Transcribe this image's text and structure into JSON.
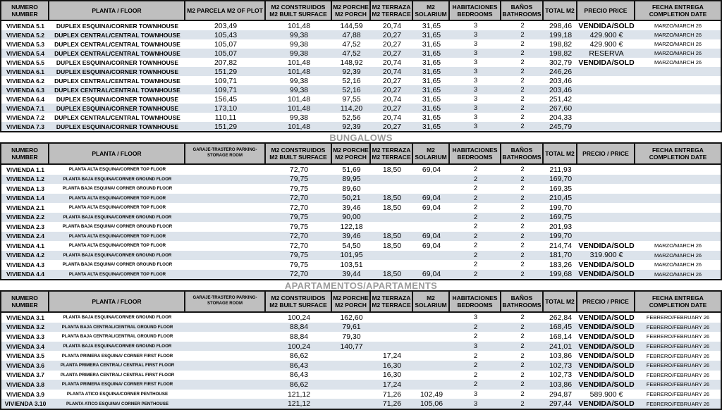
{
  "colors": {
    "header_bg": "#bfbfbf",
    "stripe": "#dce3eb",
    "border": "#141414",
    "section_title": "#9b9b9b"
  },
  "sections": [
    {
      "name": "townhouses",
      "title": "",
      "headers": [
        {
          "key": "numero",
          "lines": [
            "NUMERO",
            "NUMBER"
          ]
        },
        {
          "key": "planta",
          "lines": [
            "PLANTA  /  FLOOR"
          ]
        },
        {
          "key": "plot",
          "lines": [
            "M2 PARCELA M2 OF PLOT"
          ]
        },
        {
          "key": "built",
          "lines": [
            "M2 CONSTRUIDOS",
            "M2 BUILT SURFACE"
          ]
        },
        {
          "key": "porch",
          "lines": [
            "M2 PORCHE",
            "M2 PORCH"
          ]
        },
        {
          "key": "terrace",
          "lines": [
            "M2 TERRAZA",
            "M2 TERRACE"
          ]
        },
        {
          "key": "solarium",
          "lines": [
            "M2",
            "SOLARIUM"
          ]
        },
        {
          "key": "bedrooms",
          "lines": [
            "HABITACIONES",
            "BEDROOMS"
          ]
        },
        {
          "key": "bathrooms",
          "lines": [
            "BAÑOS",
            "BATHROOMS"
          ]
        },
        {
          "key": "total",
          "lines": [
            "TOTAL M2"
          ]
        },
        {
          "key": "price",
          "lines": [
            "PRECIO  PRICE"
          ]
        },
        {
          "key": "date",
          "lines": [
            "FECHA ENTREGA",
            "COMPLETION DATE"
          ]
        }
      ],
      "rows": [
        [
          "VIVIENDA 5.1",
          "DUPLEX ESQUINA/CORNER TOWNHOUSE",
          "203,49",
          "101,48",
          "144,59",
          "20,74",
          "31,65",
          "3",
          "2",
          "298,46",
          "VENDIDA/SOLD",
          "MARZO/MARCH 26"
        ],
        [
          "VIVIENDA 5.2",
          "DUPLEX CENTRAL/CENTRAL TOWNHOUSE",
          "105,43",
          "99,38",
          "47,88",
          "20,27",
          "31,65",
          "3",
          "2",
          "199,18",
          "429.900 €",
          "MARZO/MARCH 26"
        ],
        [
          "VIVIENDA 5.3",
          "DUPLEX CENTRAL/CENTRAL TOWNHOUSE",
          "105,07",
          "99,38",
          "47,52",
          "20,27",
          "31,65",
          "3",
          "2",
          "198,82",
          "429.900 €",
          "MARZO/MARCH 26"
        ],
        [
          "VIVIENDA 5.4",
          "DUPLEX CENTRAL/CENTRAL TOWNHOUSE",
          "105,07",
          "99,38",
          "47,52",
          "20,27",
          "31,65",
          "3",
          "2",
          "198,82",
          "RESERVA",
          "MARZO/MARCH 26"
        ],
        [
          "VIVIENDA 5.5",
          "DUPLEX ESQUINA/CORNER TOWNHOUSE",
          "207,82",
          "101,48",
          "148,92",
          "20,74",
          "31,65",
          "3",
          "2",
          "302,79",
          "VENDIDA/SOLD",
          "MARZO/MARCH 26"
        ],
        [
          "VIVIENDA 6.1",
          "DUPLEX ESQUINA/CORNER TOWNHOUSE",
          "151,29",
          "101,48",
          "92,39",
          "20,74",
          "31,65",
          "3",
          "2",
          "246,26",
          "",
          ""
        ],
        [
          "VIVIENDA 6.2",
          "DUPLEX CENTRAL/CENTRAL TOWNHOUSE",
          "109,71",
          "99,38",
          "52,16",
          "20,27",
          "31,65",
          "3",
          "2",
          "203,46",
          "",
          ""
        ],
        [
          "VIVIENDA 6.3",
          "DUPLEX CENTRAL/CENTRAL TOWNHOUSE",
          "109,71",
          "99,38",
          "52,16",
          "20,27",
          "31,65",
          "3",
          "2",
          "203,46",
          "",
          ""
        ],
        [
          "VIVIENDA 6.4",
          "DUPLEX ESQUINA/CORNER TOWNHOUSE",
          "156,45",
          "101,48",
          "97,55",
          "20,74",
          "31,65",
          "3",
          "2",
          "251,42",
          "",
          ""
        ],
        [
          "VIVIENDA 7.1",
          "DUPLEX ESQUINA/CORNER TOWNHOUSE",
          "173,10",
          "101,48",
          "114,20",
          "20,27",
          "31,65",
          "3",
          "2",
          "267,60",
          "",
          ""
        ],
        [
          "VIVIENDA 7.2",
          "DUPLEX CENTRAL/CENTRAL TOWNHOUSE",
          "110,11",
          "99,38",
          "52,56",
          "20,74",
          "31,65",
          "3",
          "2",
          "204,33",
          "",
          ""
        ],
        [
          "VIVIENDA 7.3",
          "DUPLEX ESQUINA/CORNER TOWNHOUSE",
          "151,29",
          "101,48",
          "92,39",
          "20,27",
          "31,65",
          "3",
          "2",
          "245,79",
          "",
          ""
        ]
      ]
    },
    {
      "name": "bungalows",
      "title": "BUNGALOWS",
      "headers": [
        {
          "key": "numero",
          "lines": [
            "NUMERO",
            "NUMBER"
          ]
        },
        {
          "key": "planta",
          "lines": [
            "PLANTA  /  FLOOR"
          ]
        },
        {
          "key": "garage",
          "lines": [
            "GARAJE-TRASTERO PARKING-",
            "STORAGE ROOM"
          ],
          "small": true
        },
        {
          "key": "built",
          "lines": [
            "M2 CONSTRUIDOS",
            "M2 BUILT SURFACE"
          ]
        },
        {
          "key": "porch",
          "lines": [
            "M2 PORCHE",
            "M2 PORCH"
          ]
        },
        {
          "key": "terrace",
          "lines": [
            "M2 TERRAZA",
            "M2 TERRACE"
          ]
        },
        {
          "key": "solarium",
          "lines": [
            "M2",
            "SOLARIUM"
          ]
        },
        {
          "key": "bedrooms",
          "lines": [
            "HABITACIONES",
            "BEDROOMS"
          ]
        },
        {
          "key": "bathrooms",
          "lines": [
            "BAÑOS",
            "BATHROOMS"
          ]
        },
        {
          "key": "total",
          "lines": [
            "TOTAL M2"
          ]
        },
        {
          "key": "price",
          "lines": [
            "PRECIO / PRICE"
          ]
        },
        {
          "key": "date",
          "lines": [
            "FECHA ENTREGA",
            "COMPLETION DATE"
          ]
        }
      ],
      "rows": [
        [
          "VIVIENDA 1.1",
          "PLANTA ALTA ESQUINA/CORNER TOP FLOOR",
          "",
          "72,70",
          "51,69",
          "18,50",
          "69,04",
          "2",
          "2",
          "211,93",
          "",
          ""
        ],
        [
          "VIVIENDA 1.2",
          "PLANTA BAJA ESQUINA/CORNER GROUND FLOOR",
          "",
          "79,75",
          "89,95",
          "",
          "",
          "2",
          "2",
          "169,70",
          "",
          ""
        ],
        [
          "VIVIENDA 1.3",
          "PLANTA BAJA ESQUINA/ CORNER GROUND FLOOR",
          "",
          "79,75",
          "89,60",
          "",
          "",
          "2",
          "2",
          "169,35",
          "",
          ""
        ],
        [
          "VIVIENDA 1.4",
          "PLANTA ALTA ESQUINA/CORNER TOP FLOOR",
          "",
          "72,70",
          "50,21",
          "18,50",
          "69,04",
          "2",
          "2",
          "210,45",
          "",
          ""
        ],
        [
          "VIVIENDA 2.1",
          "PLANTA ALTA ESQUINA/CORNER TOP FLOOR",
          "",
          "72,70",
          "39,46",
          "18,50",
          "69,04",
          "2",
          "2",
          "199,70",
          "",
          ""
        ],
        [
          "VIVIENDA 2.2",
          "PLANTA BAJA ESQUINA/CORNER GROUND FLOOR",
          "",
          "79,75",
          "90,00",
          "",
          "",
          "2",
          "2",
          "169,75",
          "",
          ""
        ],
        [
          "VIVIENDA 2.3",
          "PLANTA BAJA ESQUINA/ CORNER GROUND FLOOR",
          "",
          "79,75",
          "122,18",
          "",
          "",
          "2",
          "2",
          "201,93",
          "",
          ""
        ],
        [
          "VIVIENDA 2.4",
          "PLANTA ALTA ESQUINA/CORNER TOP FLOOR",
          "",
          "72,70",
          "39,46",
          "18,50",
          "69,04",
          "2",
          "2",
          "199,70",
          "",
          ""
        ],
        [
          "VIVIENDA 4.1",
          "PLANTA ALTA ESQUINA/CORNER TOP FLOOR",
          "",
          "72,70",
          "54,50",
          "18,50",
          "69,04",
          "2",
          "2",
          "214,74",
          "VENDIDA/SOLD",
          "MARZO/MARCH 26"
        ],
        [
          "VIVIENDA 4.2",
          "PLANTA BAJA ESQUINA/CORNER GROUND FLOOR",
          "",
          "79,75",
          "101,95",
          "",
          "",
          "2",
          "2",
          "181,70",
          "319.900 €",
          "MARZO/MARCH 26"
        ],
        [
          "VIVIENDA 4.3",
          "PLANTA BAJA ESQUINA/ CORNER GROUND FLOOR",
          "",
          "79,75",
          "103,51",
          "",
          "",
          "2",
          "2",
          "183,26",
          "VENDIDA/SOLD",
          "MARZO/MARCH 26"
        ],
        [
          "VIVIENDA 4.4",
          "PLANTA ALTA ESQUINA/CORNER TOP FLOOR",
          "",
          "72,70",
          "39,44",
          "18,50",
          "69,04",
          "2",
          "2",
          "199,68",
          "VENDIDA/SOLD",
          "MARZO/MARCH 26"
        ]
      ]
    },
    {
      "name": "apartments",
      "title": "APARTAMENTOS/APARTAMENTS",
      "headers": [
        {
          "key": "numero",
          "lines": [
            "NUMERO",
            "NUMBER"
          ]
        },
        {
          "key": "planta",
          "lines": [
            "PLANTA  /  FLOOR"
          ]
        },
        {
          "key": "garage",
          "lines": [
            "GARAJE-TRASTERO PARKING-",
            "STORAGE ROOM"
          ],
          "small": true
        },
        {
          "key": "built",
          "lines": [
            "M2 CONSTRUIDOS",
            "M2 BUILT SURFACE"
          ]
        },
        {
          "key": "porch",
          "lines": [
            "M2 PORCHE",
            "M2 PORCH"
          ]
        },
        {
          "key": "terrace",
          "lines": [
            "M2 TERRAZA",
            "M2 TERRACE"
          ]
        },
        {
          "key": "solarium",
          "lines": [
            "M2",
            "SOLARIUM"
          ]
        },
        {
          "key": "bedrooms",
          "lines": [
            "HABITACIONES",
            "BEDROOMS"
          ]
        },
        {
          "key": "bathrooms",
          "lines": [
            "BAÑOS",
            "BATHROOMS"
          ]
        },
        {
          "key": "total",
          "lines": [
            "TOTAL M2"
          ]
        },
        {
          "key": "price",
          "lines": [
            "PRECIO / PRICE"
          ]
        },
        {
          "key": "date",
          "lines": [
            "FECHA ENTREGA",
            "COMPLETION DATE"
          ]
        }
      ],
      "rows": [
        [
          "VIVIENDA 3.1",
          "PLANTA BAJA ESQUINA/CORNER GROUND FLOOR",
          "",
          "100,24",
          "162,60",
          "",
          "",
          "3",
          "2",
          "262,84",
          "VENDIDA/SOLD",
          "FEBRERO/FEBRUARY 26"
        ],
        [
          "VIVIENDA 3.2",
          "PLANTA BAJA CENTRAL/CENTRAL GROUND FLOOR",
          "",
          "88,84",
          "79,61",
          "",
          "",
          "2",
          "2",
          "168,45",
          "VENDIDA/SOLD",
          "FEBRERO/FEBRUARY 26"
        ],
        [
          "VIVIENDA 3.3",
          "PLANTA BAJA CENTRAL/CENTRAL GROUND FLOOR",
          "",
          "88,84",
          "79,30",
          "",
          "",
          "2",
          "2",
          "168,14",
          "VENDIDA/SOLD",
          "FEBRERO/FEBRUARY 26"
        ],
        [
          "VIVIENDA 3.4",
          "PLANTA BAJA ESQUINA/CORNER GROUND FLOOR",
          "",
          "100,24",
          "140,77",
          "",
          "",
          "3",
          "2",
          "241,01",
          "VENDIDA/SOLD",
          "FEBRERO/FEBRUARY 26"
        ],
        [
          "VIVIENDA 3.5",
          "PLANTA PRIMERA ESQUINA/ CORNER FIRST FLOOR",
          "",
          "86,62",
          "",
          "17,24",
          "",
          "2",
          "2",
          "103,86",
          "VENDIDA/SOLD",
          "FEBRERO/FEBRUARY 26"
        ],
        [
          "VIVIENDA 3.6",
          "PLANTA PRIMERA CENTRAL/ CENTRAL FIRST FLOOR",
          "",
          "86,43",
          "",
          "16,30",
          "",
          "2",
          "2",
          "102,73",
          "VENDIDA/SOLD",
          "FEBRERO/FEBRUARY 26"
        ],
        [
          "VIVIENDA 3.7",
          "PLANTA PRIMERA CENTRAL/ CENTRAL FIRST FLOOR",
          "",
          "86,43",
          "",
          "16,30",
          "",
          "2",
          "2",
          "102,73",
          "VENDIDA/SOLD",
          "FEBRERO/FEBRUARY 26"
        ],
        [
          "VIVIENDA 3.8",
          "PLANTA PRIMERA ESQUINA/ CORNER FIRST FLOOR",
          "",
          "86,62",
          "",
          "17,24",
          "",
          "2",
          "2",
          "103,86",
          "VENDIDA/SOLD",
          "FEBRERO/FEBRUARY 26"
        ],
        [
          "VIVIENDA 3.9",
          "PLANTA ATICO ESQUINA/CORNER PENTHOUSE",
          "",
          "121,12",
          "",
          "71,26",
          "102,49",
          "3",
          "2",
          "294,87",
          "589.900 €",
          "FEBRERO/FEBRUARY 26"
        ],
        [
          "VIVIENDA 3.10",
          "PLANTA ATICO ESQUINA/ CORNER PENTHOUSE",
          "",
          "121,12",
          "",
          "71,26",
          "105,06",
          "3",
          "2",
          "297,44",
          "VENDIDA/SOLD",
          "FEBRERO/FEBRUARY 26"
        ]
      ]
    }
  ]
}
